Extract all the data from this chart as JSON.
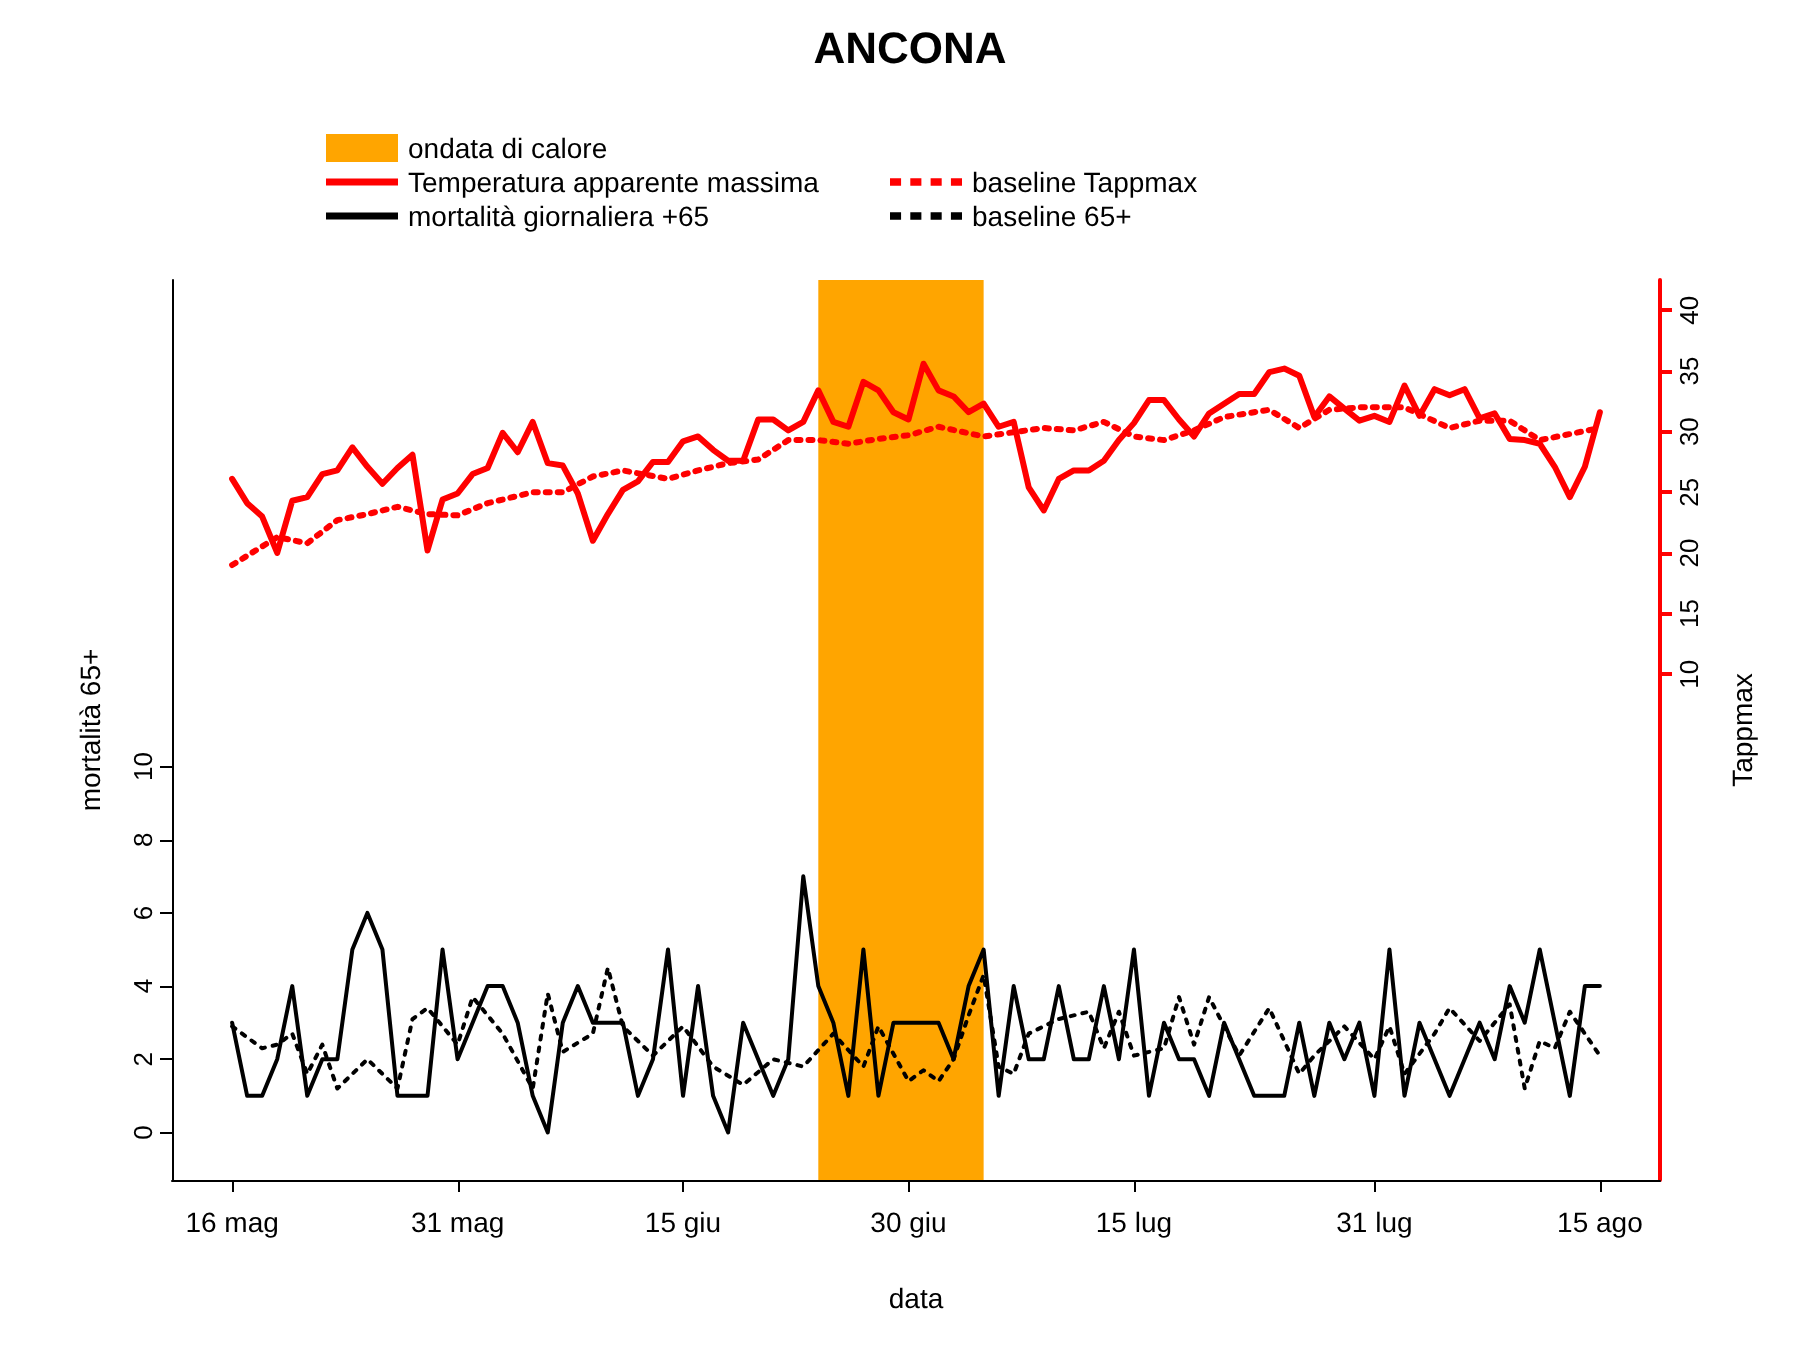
{
  "chart_data": {
    "type": "line",
    "title": "ANCONA",
    "xlabel": "data",
    "ylabel": "mortalità 65+",
    "y2label": "Tappmax",
    "x": [
      "--05-16",
      "--05-17",
      "--05-18",
      "--05-19",
      "--05-20",
      "--05-21",
      "--05-22",
      "--05-23",
      "--05-24",
      "--05-25",
      "--05-26",
      "--05-27",
      "--05-28",
      "--05-29",
      "--05-30",
      "--05-31",
      "--06-01",
      "--06-02",
      "--06-03",
      "--06-04",
      "--06-05",
      "--06-06",
      "--06-07",
      "--06-08",
      "--06-09",
      "--06-10",
      "--06-11",
      "--06-12",
      "--06-13",
      "--06-14",
      "--06-15",
      "--06-16",
      "--06-17",
      "--06-18",
      "--06-19",
      "--06-20",
      "--06-21",
      "--06-22",
      "--06-23",
      "--06-24",
      "--06-25",
      "--06-26",
      "--06-27",
      "--06-28",
      "--06-29",
      "--06-30",
      "--07-01",
      "--07-02",
      "--07-03",
      "--07-04",
      "--07-05",
      "--07-06",
      "--07-07",
      "--07-08",
      "--07-09",
      "--07-10",
      "--07-11",
      "--07-12",
      "--07-13",
      "--07-14",
      "--07-15",
      "--07-16",
      "--07-17",
      "--07-18",
      "--07-19",
      "--07-20",
      "--07-21",
      "--07-22",
      "--07-23",
      "--07-24",
      "--07-25",
      "--07-26",
      "--07-27",
      "--07-28",
      "--07-29",
      "--07-30",
      "--07-31",
      "--08-01",
      "--08-02",
      "--08-03",
      "--08-04",
      "--08-05",
      "--08-06",
      "--08-07",
      "--08-08",
      "--08-09",
      "--08-10",
      "--08-11",
      "--08-12",
      "--08-13",
      "--08-14",
      "--08-15"
    ],
    "series": [
      {
        "name": "Temperatura apparente massima",
        "color": "#ff0000",
        "axis": "y2",
        "line_style": "solid",
        "values": [
          26.1,
          24.1,
          23.0,
          20.0,
          24.3,
          24.6,
          26.5,
          26.8,
          28.7,
          27.1,
          25.7,
          27.0,
          28.1,
          20.2,
          24.4,
          24.9,
          26.5,
          27.0,
          29.9,
          28.3,
          30.8,
          27.4,
          27.2,
          24.9,
          21.0,
          23.2,
          25.2,
          25.9,
          27.5,
          27.5,
          29.2,
          29.6,
          28.5,
          27.6,
          27.6,
          31.0,
          31.0,
          30.1,
          30.8,
          33.4,
          30.8,
          30.4,
          34.1,
          33.4,
          31.6,
          31.0,
          35.6,
          33.4,
          32.9,
          31.6,
          32.3,
          30.4,
          30.8,
          25.4,
          23.5,
          26.1,
          26.8,
          26.8,
          27.6,
          29.3,
          30.7,
          32.6,
          32.6,
          31.0,
          29.6,
          31.5,
          32.3,
          33.1,
          33.1,
          34.9,
          35.2,
          34.6,
          31.2,
          32.9,
          31.9,
          30.9,
          31.3,
          30.8,
          33.8,
          31.3,
          33.5,
          33.0,
          33.5,
          31.1,
          31.5,
          29.4,
          29.3,
          29.0,
          27.1,
          24.6,
          27.1,
          31.6
        ]
      },
      {
        "name": "baseline Tappmax",
        "color": "#ff0000",
        "axis": "y2",
        "line_style": "dotted",
        "x": [
          "--05-16",
          "--05-19",
          "--05-21",
          "--05-23",
          "--05-25",
          "--05-27",
          "--05-29",
          "--05-31",
          "--06-02",
          "--06-05",
          "--06-07",
          "--06-09",
          "--06-11",
          "--06-14",
          "--06-16",
          "--06-18",
          "--06-20",
          "--06-22",
          "--06-24",
          "--06-26",
          "--06-28",
          "--06-30",
          "--07-02",
          "--07-05",
          "--07-09",
          "--07-11",
          "--07-13",
          "--07-15",
          "--07-17",
          "--07-19",
          "--07-21",
          "--07-24",
          "--07-26",
          "--07-28",
          "--07-30",
          "--08-02",
          "--08-05",
          "--08-07",
          "--08-09",
          "--08-11",
          "--08-13",
          "--08-15"
        ],
        "values": [
          19.0,
          21.3,
          20.8,
          22.7,
          23.2,
          23.8,
          23.2,
          23.1,
          24.1,
          25.0,
          25.0,
          26.3,
          26.8,
          26.1,
          26.8,
          27.4,
          27.7,
          29.3,
          29.3,
          29.0,
          29.4,
          29.7,
          30.4,
          29.6,
          30.3,
          30.1,
          30.8,
          29.6,
          29.3,
          30.1,
          31.2,
          31.8,
          30.3,
          31.8,
          32.0,
          32.0,
          30.3,
          30.9,
          30.9,
          29.3,
          29.8,
          30.3
        ]
      },
      {
        "name": "mortalità giornaliera +65",
        "color": "#000000",
        "line_style": "solid",
        "values": [
          3,
          1,
          1,
          2,
          4,
          1,
          2,
          2,
          5,
          6,
          5,
          1,
          1,
          1,
          5,
          2,
          3,
          4,
          4,
          3,
          1,
          0,
          3,
          4,
          3,
          3,
          3,
          1,
          2,
          5,
          1,
          4,
          1,
          0,
          3,
          2,
          1,
          2,
          7,
          4,
          3,
          1,
          5,
          1,
          3,
          3,
          3,
          3,
          2,
          4,
          5,
          1,
          4,
          2,
          2,
          4,
          2,
          2,
          4,
          2,
          5,
          1,
          3,
          2,
          2,
          1,
          3,
          2,
          1,
          1,
          1,
          3,
          1,
          3,
          2,
          3,
          1,
          5,
          1,
          3,
          2,
          1,
          2,
          3,
          2,
          4,
          3,
          5,
          3,
          1,
          4,
          4
        ]
      },
      {
        "name": "baseline 65+",
        "color": "#000000",
        "line_style": "dotted",
        "x": [
          "--05-16",
          "--05-18",
          "--05-19",
          "--05-20",
          "--05-21",
          "--05-22",
          "--05-23",
          "--05-25",
          "--05-27",
          "--05-28",
          "--05-29",
          "--05-31",
          "--06-01",
          "--06-03",
          "--06-05",
          "--06-06",
          "--06-07",
          "--06-09",
          "--06-10",
          "--06-11",
          "--06-13",
          "--06-15",
          "--06-17",
          "--06-19",
          "--06-21",
          "--06-23",
          "--06-25",
          "--06-27",
          "--06-28",
          "--06-30",
          "--07-01",
          "--07-02",
          "--07-03",
          "--07-04",
          "--07-05",
          "--07-06",
          "--07-07",
          "--07-08",
          "--07-10",
          "--07-12",
          "--07-13",
          "--07-14",
          "--07-15",
          "--07-17",
          "--07-18",
          "--07-19",
          "--07-20",
          "--07-22",
          "--07-24",
          "--07-26",
          "--07-27",
          "--07-29",
          "--07-31",
          "--08-01",
          "--08-02",
          "--08-04",
          "--08-05",
          "--08-07",
          "--08-09",
          "--08-10",
          "--08-11",
          "--08-12",
          "--08-13",
          "--08-15"
        ],
        "values": [
          2.9,
          2.3,
          2.4,
          2.7,
          1.6,
          2.4,
          1.2,
          2.0,
          1.2,
          3.1,
          3.4,
          2.4,
          3.7,
          2.7,
          1.2,
          3.8,
          2.2,
          2.7,
          4.5,
          2.9,
          2.1,
          2.9,
          1.8,
          1.3,
          2.0,
          1.8,
          2.7,
          1.8,
          2.9,
          1.4,
          1.7,
          1.4,
          2.0,
          3.2,
          4.3,
          1.8,
          1.6,
          2.7,
          3.1,
          3.3,
          2.3,
          3.3,
          2.1,
          2.3,
          3.7,
          2.4,
          3.7,
          2.1,
          3.4,
          1.6,
          2.1,
          2.9,
          2.0,
          2.9,
          1.6,
          2.7,
          3.4,
          2.5,
          3.5,
          1.2,
          2.5,
          2.3,
          3.3,
          2.1
        ]
      }
    ],
    "bands": [
      {
        "axis": "x",
        "from": "--06-24",
        "to": "--07-05",
        "label": "ondata di calore",
        "color": "#ffa500"
      }
    ],
    "xlim": [
      "--05-12",
      "--08-19"
    ],
    "xticks": [
      {
        "value": "--05-16",
        "label": "16 mag"
      },
      {
        "value": "--05-31",
        "label": "31 mag"
      },
      {
        "value": "--06-15",
        "label": "15 giu"
      },
      {
        "value": "--06-30",
        "label": "30 giu"
      },
      {
        "value": "--07-15",
        "label": "15 lug"
      },
      {
        "value": "--07-31",
        "label": "31 lug"
      },
      {
        "value": "--08-15",
        "label": "15 ago"
      }
    ],
    "ylim": [
      -1.3,
      23.3
    ],
    "yticks": [
      0,
      2,
      4,
      6,
      8,
      10
    ],
    "y2lim": [
      -31.7,
      42.5
    ],
    "y2ticks": [
      10,
      15,
      20,
      25,
      30,
      35,
      40
    ],
    "grid": false,
    "legend": "top",
    "marker": "none"
  }
}
